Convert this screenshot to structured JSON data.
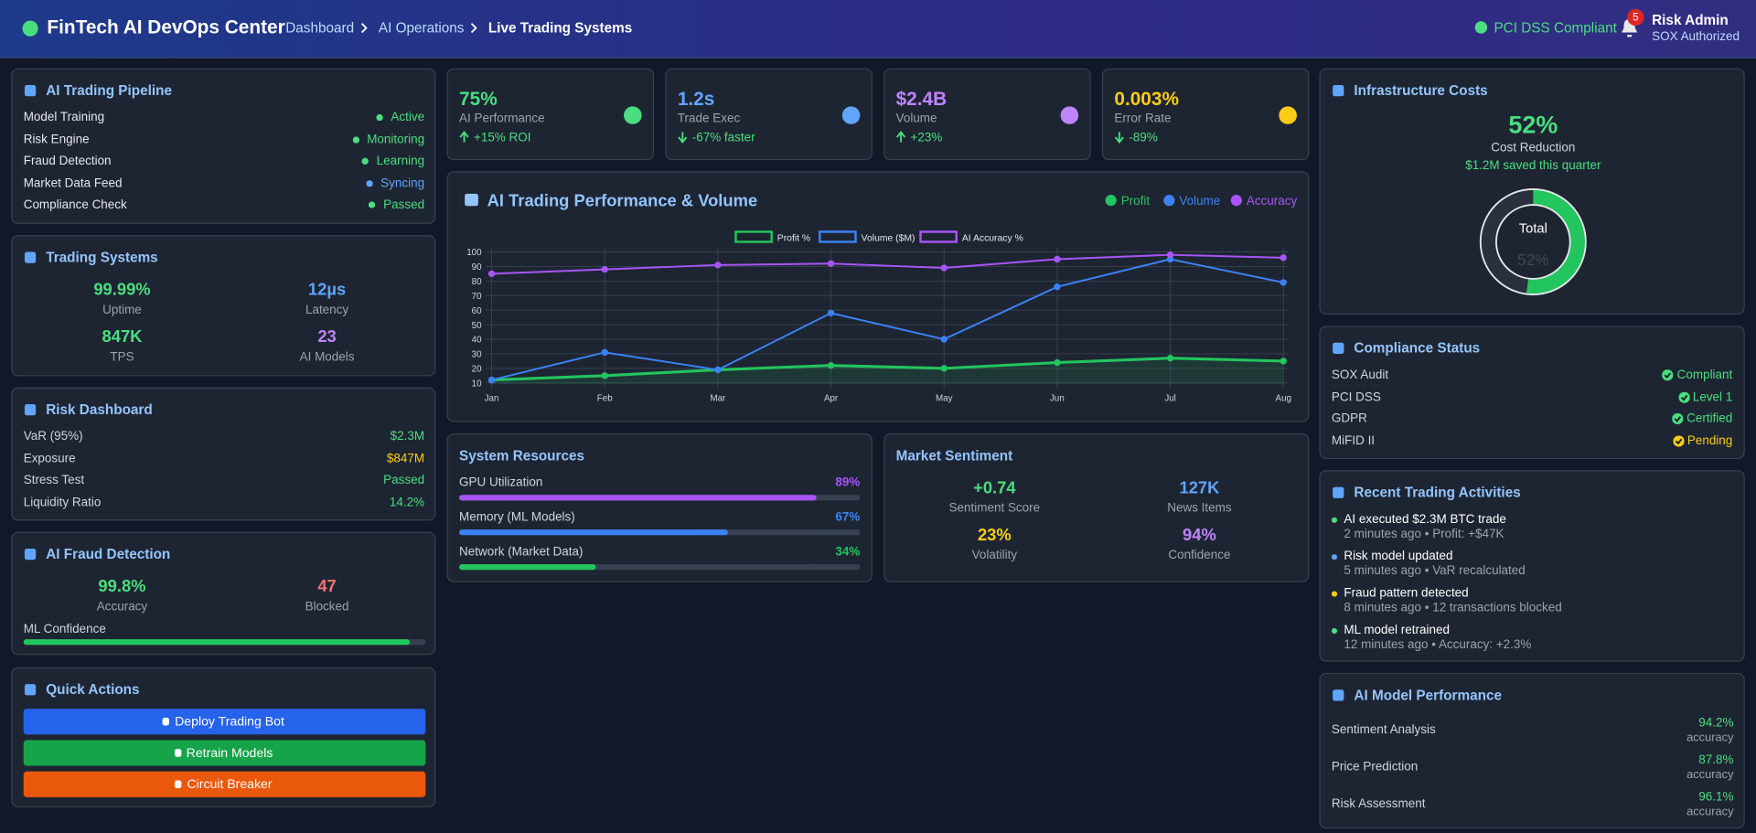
{
  "header": {
    "title": "FinTech AI DevOps Center",
    "breadcrumbs": [
      "Dashboard",
      "AI Operations",
      "Live Trading Systems"
    ],
    "compliance": "PCI DSS Compliant",
    "notifications": 5,
    "user": "Risk Admin",
    "role": "SOX Authorized"
  },
  "pipeline": {
    "title": "AI Trading Pipeline",
    "items": [
      {
        "name": "Model Training",
        "status": "Active",
        "color": "#4ade80"
      },
      {
        "name": "Risk Engine",
        "status": "Monitoring",
        "color": "#4ade80"
      },
      {
        "name": "Fraud Detection",
        "status": "Learning",
        "color": "#4ade80"
      },
      {
        "name": "Market Data Feed",
        "status": "Syncing",
        "color": "#60a5fa"
      },
      {
        "name": "Compliance Check",
        "status": "Passed",
        "color": "#4ade80"
      }
    ]
  },
  "trading_systems": {
    "title": "Trading Systems",
    "stats": [
      {
        "value": "99.99%",
        "label": "Uptime",
        "color": "#4ade80"
      },
      {
        "value": "12µs",
        "label": "Latency",
        "color": "#60a5fa"
      },
      {
        "value": "847K",
        "label": "TPS",
        "color": "#4ade80"
      },
      {
        "value": "23",
        "label": "AI Models",
        "color": "#c084fc"
      }
    ]
  },
  "risk": {
    "title": "Risk Dashboard",
    "rows": [
      {
        "name": "VaR (95%)",
        "value": "$2.3M",
        "color": "#4ade80"
      },
      {
        "name": "Exposure",
        "value": "$847M",
        "color": "#facc15"
      },
      {
        "name": "Stress Test",
        "value": "Passed",
        "color": "#4ade80"
      },
      {
        "name": "Liquidity Ratio",
        "value": "14.2%",
        "color": "#4ade80"
      }
    ]
  },
  "fraud": {
    "title": "AI Fraud Detection",
    "stats": [
      {
        "value": "99.8%",
        "label": "Accuracy",
        "color": "#4ade80"
      },
      {
        "value": "47",
        "label": "Blocked",
        "color": "#f87171"
      }
    ],
    "confidence_label": "ML Confidence",
    "confidence": 96
  },
  "quick_actions": {
    "title": "Quick Actions",
    "buttons": [
      {
        "label": "Deploy Trading Bot",
        "color": "#2563eb"
      },
      {
        "label": "Retrain Models",
        "color": "#16a34a"
      },
      {
        "label": "Circuit Breaker",
        "color": "#ea580c"
      }
    ]
  },
  "kpis": [
    {
      "value": "75%",
      "label": "AI Performance",
      "change": "+15% ROI",
      "trend": "up",
      "color": "#4ade80"
    },
    {
      "value": "1.2s",
      "label": "Trade Exec",
      "change": "-67% faster",
      "trend": "down",
      "color": "#60a5fa"
    },
    {
      "value": "$2.4B",
      "label": "Volume",
      "change": "+23%",
      "trend": "up",
      "color": "#c084fc"
    },
    {
      "value": "0.003%",
      "label": "Error Rate",
      "change": "-89%",
      "trend": "down",
      "color": "#facc15"
    }
  ],
  "chart_data": {
    "type": "line",
    "title": "AI Trading Performance & Volume",
    "legend_labels": [
      "Profit",
      "Volume",
      "Accuracy"
    ],
    "categories": [
      "Jan",
      "Feb",
      "Mar",
      "Apr",
      "May",
      "Jun",
      "Jul",
      "Aug"
    ],
    "series": [
      {
        "name": "Profit %",
        "color": "#22c55e",
        "fill": true,
        "values": [
          12,
          15,
          19,
          22,
          20,
          24,
          27,
          25
        ]
      },
      {
        "name": "Volume ($M)",
        "color": "#3b82f6",
        "values": [
          12,
          31,
          19,
          58,
          40,
          76,
          95,
          79
        ]
      },
      {
        "name": "AI Accuracy %",
        "color": "#a855f7",
        "values": [
          85,
          88,
          91,
          92,
          89,
          95,
          98,
          96
        ]
      }
    ],
    "ylim": [
      9,
      100
    ],
    "yticks": [
      10,
      20,
      30,
      40,
      50,
      60,
      70,
      80,
      90,
      100
    ],
    "grid": true,
    "legend": "top"
  },
  "resources": {
    "title": "System Resources",
    "labels": [
      "GPU Utilization",
      "Memory (ML Models)",
      "Network (Market Data)"
    ],
    "values": [
      89,
      67,
      34
    ],
    "value_labels": [
      "89%",
      "67%",
      "34%"
    ],
    "colors": [
      "#a855f7",
      "#3b82f6",
      "#22c55e"
    ]
  },
  "sentiment": {
    "title": "Market Sentiment",
    "stats": [
      {
        "value": "+0.74",
        "label": "Sentiment Score",
        "color": "#4ade80"
      },
      {
        "value": "127K",
        "label": "News Items",
        "color": "#60a5fa"
      },
      {
        "value": "23%",
        "label": "Volatility",
        "color": "#facc15"
      },
      {
        "value": "94%",
        "label": "Confidence",
        "color": "#c084fc"
      }
    ]
  },
  "costs": {
    "title": "Infrastructure Costs",
    "percent": 52,
    "percent_label": "52%",
    "label": "Cost Reduction",
    "note": "$1.2M saved this quarter",
    "center_label": "Total"
  },
  "compliance": {
    "title": "Compliance Status",
    "rows": [
      {
        "name": "SOX Audit",
        "status": "Compliant",
        "color": "#4ade80"
      },
      {
        "name": "PCI DSS",
        "status": "Level 1",
        "color": "#4ade80"
      },
      {
        "name": "GDPR",
        "status": "Certified",
        "color": "#4ade80"
      },
      {
        "name": "MiFID II",
        "status": "Pending",
        "color": "#facc15"
      }
    ]
  },
  "activities": {
    "title": "Recent Trading Activities",
    "items": [
      {
        "title": "AI executed $2.3M BTC trade",
        "meta": "2 minutes ago • Profit: +$47K",
        "color": "#4ade80"
      },
      {
        "title": "Risk model updated",
        "meta": "5 minutes ago • VaR recalculated",
        "color": "#60a5fa"
      },
      {
        "title": "Fraud pattern detected",
        "meta": "8 minutes ago • 12 transactions blocked",
        "color": "#facc15"
      },
      {
        "title": "ML model retrained",
        "meta": "12 minutes ago • Accuracy: +2.3%",
        "color": "#4ade80"
      }
    ]
  },
  "models": {
    "title": "AI Model Performance",
    "items": [
      {
        "name": "Sentiment Analysis",
        "value": "94.2%",
        "unit": "accuracy"
      },
      {
        "name": "Price Prediction",
        "value": "87.8%",
        "unit": "accuracy"
      },
      {
        "name": "Risk Assessment",
        "value": "96.1%",
        "unit": "accuracy"
      }
    ]
  }
}
